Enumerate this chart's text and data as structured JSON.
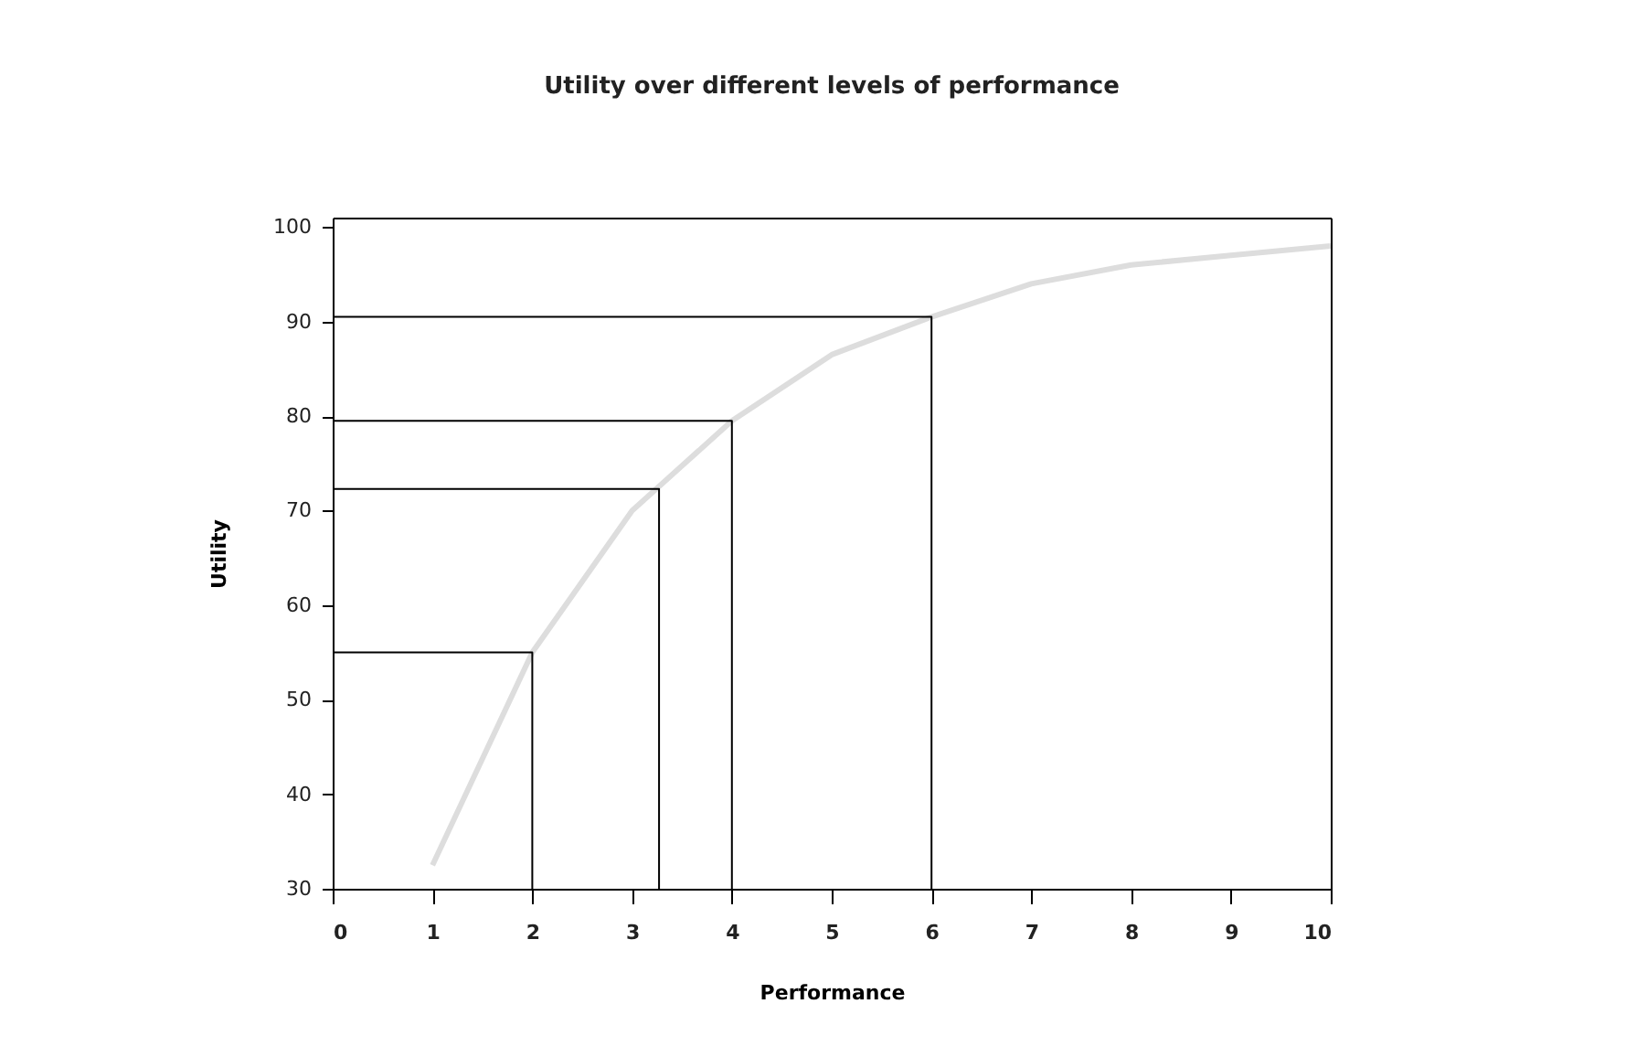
{
  "chart_data": {
    "type": "line",
    "title": "Utility over different levels of performance",
    "xlabel": "Performance",
    "ylabel": "Utility",
    "xlim": [
      0,
      10
    ],
    "xticks": [
      0,
      1,
      2,
      3,
      4,
      5,
      6,
      7,
      8,
      9,
      10
    ],
    "ylim": [
      30,
      101
    ],
    "yticks": [
      30,
      40,
      50,
      60,
      70,
      80,
      90,
      100
    ],
    "grid": false,
    "series": [
      {
        "color": "#dddddd",
        "x": [
          1,
          2,
          3,
          4,
          5,
          6,
          7,
          8,
          9,
          10
        ],
        "values": [
          32.5,
          55,
          70,
          79.5,
          86.5,
          90.5,
          94,
          96,
          97,
          98
        ]
      },
      {
        "color": "#000000",
        "x": [
          0,
          2,
          2
        ],
        "values": [
          55,
          55,
          30
        ]
      },
      {
        "color": "#000000",
        "x": [
          0,
          3.27,
          3.27
        ],
        "values": [
          72.3,
          72.3,
          30
        ]
      },
      {
        "color": "#000000",
        "x": [
          0,
          4,
          4
        ],
        "values": [
          79.5,
          79.5,
          30
        ]
      },
      {
        "color": "#000000",
        "x": [
          0,
          6,
          6
        ],
        "values": [
          90.5,
          90.5,
          30
        ]
      }
    ]
  }
}
